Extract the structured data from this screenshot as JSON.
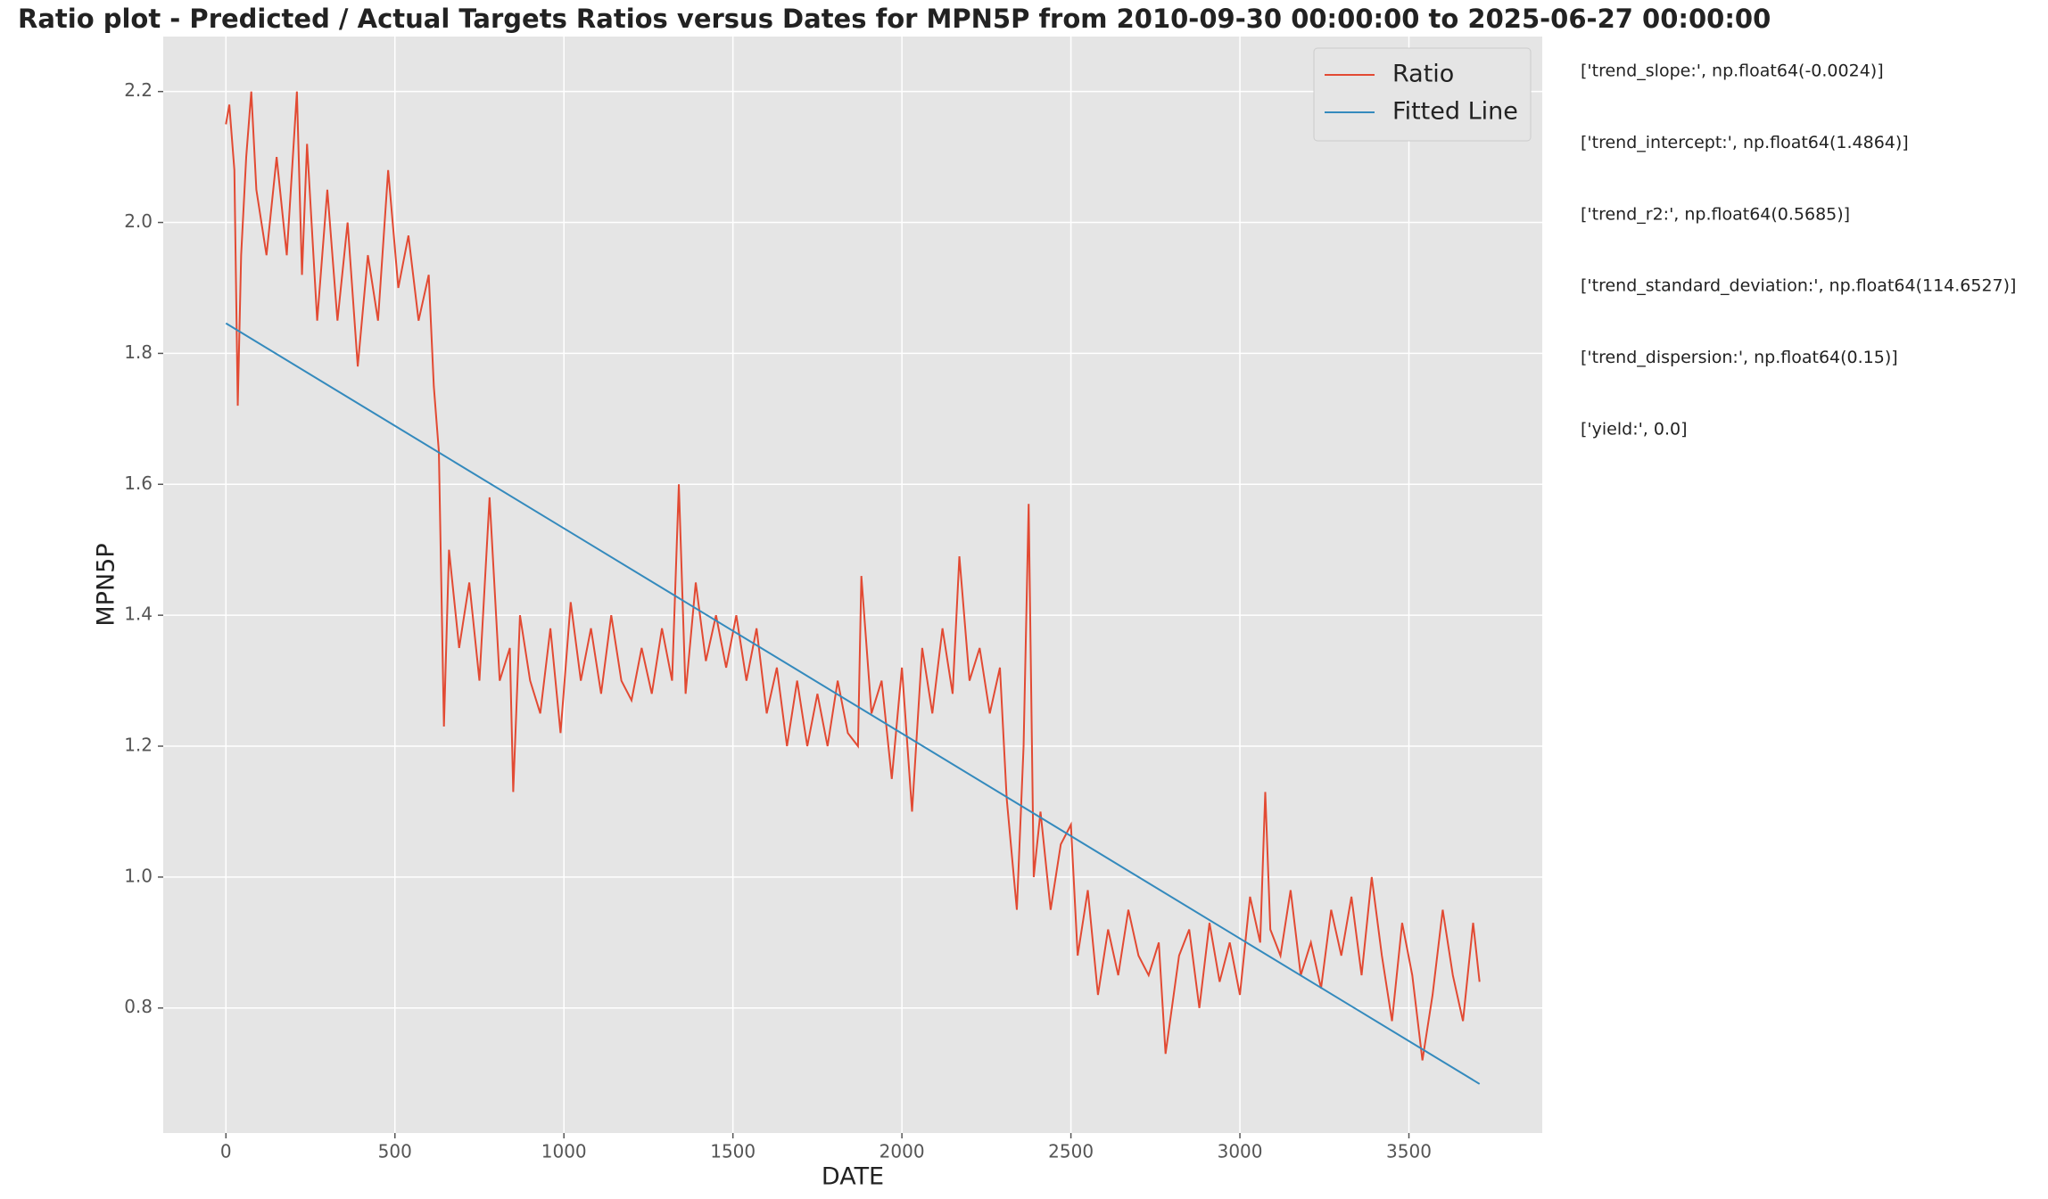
{
  "chart_data": {
    "type": "line",
    "title": "Ratio plot - Predicted / Actual Targets Ratios versus Dates for MPN5P from 2010-09-30 00:00:00 to 2025-06-27 00:00:00",
    "xlabel": "DATE",
    "ylabel": "MPN5P",
    "xlim": [
      -185.5,
      3894.5
    ],
    "ylim": [
      0.609,
      2.284
    ],
    "xticks": [
      0,
      500,
      1000,
      1500,
      2000,
      2500,
      3000,
      3500
    ],
    "yticks": [
      0.8,
      {
        "value": 1.0,
        "label": "1.0"
      },
      1.2,
      1.4,
      1.6,
      1.8,
      {
        "value": 2.0,
        "label": "2.0"
      },
      2.2
    ],
    "grid": true,
    "legend": "upper right",
    "series": [
      {
        "name": "Ratio",
        "color": "#e24a33",
        "x": [
          0,
          10,
          25,
          35,
          45,
          60,
          75,
          90,
          120,
          150,
          180,
          210,
          225,
          240,
          270,
          300,
          330,
          360,
          390,
          420,
          450,
          480,
          510,
          540,
          570,
          600,
          615,
          630,
          645,
          660,
          690,
          720,
          750,
          780,
          810,
          840,
          850,
          870,
          900,
          930,
          960,
          990,
          1020,
          1050,
          1080,
          1110,
          1140,
          1170,
          1200,
          1230,
          1260,
          1290,
          1320,
          1340,
          1360,
          1390,
          1420,
          1450,
          1480,
          1510,
          1540,
          1570,
          1600,
          1630,
          1660,
          1690,
          1720,
          1750,
          1780,
          1810,
          1840,
          1870,
          1880,
          1910,
          1940,
          1970,
          2000,
          2030,
          2060,
          2090,
          2120,
          2150,
          2170,
          2200,
          2230,
          2260,
          2290,
          2310,
          2340,
          2360,
          2375,
          2390,
          2410,
          2440,
          2470,
          2500,
          2520,
          2550,
          2580,
          2610,
          2640,
          2670,
          2700,
          2730,
          2760,
          2780,
          2820,
          2850,
          2880,
          2910,
          2940,
          2970,
          3000,
          3030,
          3060,
          3075,
          3090,
          3120,
          3150,
          3180,
          3210,
          3240,
          3270,
          3300,
          3330,
          3360,
          3390,
          3420,
          3450,
          3480,
          3510,
          3540,
          3570,
          3600,
          3630,
          3660,
          3690,
          3709
        ],
        "values": [
          2.15,
          2.18,
          2.08,
          1.72,
          1.95,
          2.1,
          2.2,
          2.05,
          1.95,
          2.1,
          1.95,
          2.2,
          1.92,
          2.12,
          1.85,
          2.05,
          1.85,
          2.0,
          1.78,
          1.95,
          1.85,
          2.08,
          1.9,
          1.98,
          1.85,
          1.92,
          1.75,
          1.65,
          1.23,
          1.5,
          1.35,
          1.45,
          1.3,
          1.58,
          1.3,
          1.35,
          1.13,
          1.4,
          1.3,
          1.25,
          1.38,
          1.22,
          1.42,
          1.3,
          1.38,
          1.28,
          1.4,
          1.3,
          1.27,
          1.35,
          1.28,
          1.38,
          1.3,
          1.6,
          1.28,
          1.45,
          1.33,
          1.4,
          1.32,
          1.4,
          1.3,
          1.38,
          1.25,
          1.32,
          1.2,
          1.3,
          1.2,
          1.28,
          1.2,
          1.3,
          1.22,
          1.2,
          1.46,
          1.25,
          1.3,
          1.15,
          1.32,
          1.1,
          1.35,
          1.25,
          1.38,
          1.28,
          1.49,
          1.3,
          1.35,
          1.25,
          1.32,
          1.12,
          0.95,
          1.2,
          1.57,
          1.0,
          1.1,
          0.95,
          1.05,
          1.08,
          0.88,
          0.98,
          0.82,
          0.92,
          0.85,
          0.95,
          0.88,
          0.85,
          0.9,
          0.73,
          0.88,
          0.92,
          0.8,
          0.93,
          0.84,
          0.9,
          0.82,
          0.97,
          0.9,
          1.13,
          0.92,
          0.88,
          0.98,
          0.85,
          0.9,
          0.83,
          0.95,
          0.88,
          0.97,
          0.85,
          1.0,
          0.88,
          0.78,
          0.93,
          0.85,
          0.72,
          0.82,
          0.95,
          0.85,
          0.78,
          0.93,
          0.84
        ]
      },
      {
        "name": "Fitted Line",
        "color": "#348abd",
        "x": [
          0,
          3709
        ],
        "values": [
          1.846,
          0.684
        ]
      }
    ],
    "annotations": [
      "['trend_slope:', np.float64(-0.0024)]",
      "['trend_intercept:', np.float64(1.4864)]",
      "['trend_r2:', np.float64(0.5685)]",
      "['trend_standard_deviation:', np.float64(114.6527)]",
      "['trend_dispersion:', np.float64(0.15)]",
      "['yield:', 0.0]"
    ]
  }
}
